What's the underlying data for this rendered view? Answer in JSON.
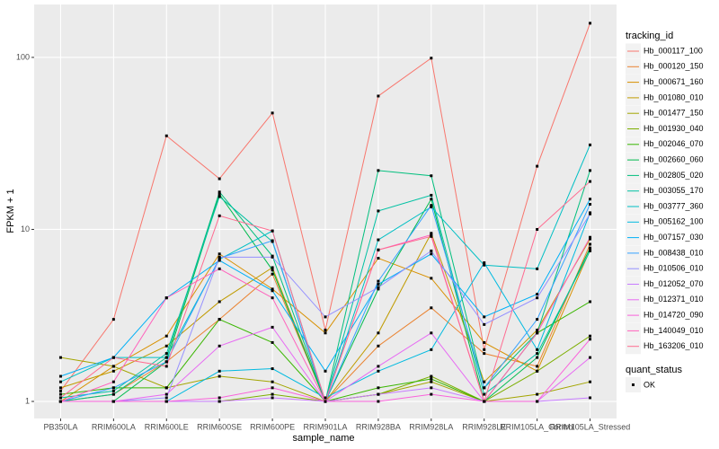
{
  "chart_data": {
    "type": "line",
    "x_label": "sample_name",
    "y_label": "FPKM + 1",
    "log_scale": true,
    "grid": true,
    "categories": [
      "PB350LA",
      "RRIM600LA",
      "RRIM600LE",
      "RRIM600SE",
      "RRIM600PE",
      "RRIM901LA",
      "RRIM928BA",
      "RRIM928LA",
      "RRIM928LE",
      "RRIM105LA_Control",
      "RRIM105LA_Stressed"
    ],
    "ylim": [
      0.796,
      203
    ],
    "yticks": [
      1,
      10,
      100
    ],
    "legend_title": "tracking_id",
    "point_legend_title": "quant_status",
    "point_legend_label": "OK",
    "point_color": "#000000",
    "series": [
      {
        "name": "Hb_000117_100",
        "color": "#F8766D",
        "values": [
          1.15,
          3.0,
          35,
          19.7,
          47.5,
          2.6,
          59.6,
          99,
          2.0,
          23.3,
          158
        ]
      },
      {
        "name": "Hb_000120_150",
        "color": "#EA8331",
        "values": [
          1.0,
          1.1,
          1.7,
          3.0,
          5.5,
          1.0,
          2.1,
          3.5,
          1.9,
          1.6,
          8.2
        ]
      },
      {
        "name": "Hb_000671_160",
        "color": "#D89000",
        "values": [
          1.0,
          1.6,
          2.4,
          7.2,
          4.5,
          2.5,
          6.8,
          5.2,
          2.2,
          1.5,
          7.6
        ]
      },
      {
        "name": "Hb_001080_010",
        "color": "#C09B00",
        "values": [
          1.2,
          1.5,
          2.1,
          3.8,
          6.0,
          1.0,
          2.5,
          9.5,
          1.3,
          2.6,
          8.8
        ]
      },
      {
        "name": "Hb_001477_150",
        "color": "#A3A500",
        "values": [
          1.8,
          1.6,
          1.2,
          1.4,
          1.3,
          1.0,
          1.1,
          1.3,
          1.0,
          1.1,
          1.3
        ]
      },
      {
        "name": "Hb_001930_040",
        "color": "#7CAE00",
        "values": [
          1.0,
          1.0,
          1.0,
          1.0,
          1.1,
          1.0,
          1.1,
          1.4,
          1.0,
          1.5,
          2.4
        ]
      },
      {
        "name": "Hb_002046_070",
        "color": "#39B600",
        "values": [
          1.1,
          1.2,
          1.2,
          3.0,
          2.2,
          1.0,
          1.2,
          1.35,
          1.0,
          2.5,
          3.8
        ]
      },
      {
        "name": "Hb_002660_060",
        "color": "#00BB4E",
        "values": [
          1.0,
          1.0,
          1.7,
          16,
          5.8,
          1.0,
          4.5,
          15,
          1.0,
          1.8,
          7.8
        ]
      },
      {
        "name": "Hb_002805_020",
        "color": "#00BF7D",
        "values": [
          1.0,
          1.1,
          1.8,
          16.5,
          7.0,
          1.0,
          22,
          20.5,
          1.2,
          2.5,
          22
        ]
      },
      {
        "name": "Hb_003055_170",
        "color": "#00C1A3",
        "values": [
          1.05,
          1.15,
          1.9,
          15.5,
          8.5,
          1.0,
          12.8,
          15.8,
          1.1,
          1.9,
          7.5
        ]
      },
      {
        "name": "Hb_003777_360",
        "color": "#00BFC4",
        "values": [
          1.3,
          1.8,
          1.8,
          6.7,
          9.8,
          1.0,
          8.7,
          13.5,
          6.2,
          5.9,
          31
        ]
      },
      {
        "name": "Hb_005162_100",
        "color": "#00BAE0",
        "values": [
          1.0,
          1.0,
          1.0,
          1.5,
          1.55,
          1.05,
          1.5,
          2.0,
          6.4,
          2.0,
          12.5
        ]
      },
      {
        "name": "Hb_007157_030",
        "color": "#00B0F6",
        "values": [
          1.4,
          1.8,
          4.0,
          6.6,
          4.4,
          1.5,
          4.8,
          7.2,
          3.1,
          4.2,
          15
        ]
      },
      {
        "name": "Hb_008438_010",
        "color": "#35A2FF",
        "values": [
          1.0,
          1.2,
          1.7,
          6.8,
          8.6,
          1.0,
          5.0,
          13.8,
          1.2,
          3.0,
          14
        ]
      },
      {
        "name": "Hb_010506_010",
        "color": "#9590FF",
        "values": [
          1.0,
          1.0,
          1.05,
          6.9,
          6.9,
          3.1,
          4.6,
          7.5,
          2.8,
          4.0,
          12.3
        ]
      },
      {
        "name": "Hb_012052_070",
        "color": "#C77CFF",
        "values": [
          1.0,
          1.0,
          1.0,
          1.0,
          1.05,
          1.0,
          1.1,
          1.2,
          1.0,
          1.0,
          1.05
        ]
      },
      {
        "name": "Hb_012371_010",
        "color": "#E76BF3",
        "values": [
          1.0,
          1.0,
          1.1,
          2.1,
          2.7,
          1.0,
          1.6,
          2.5,
          1.0,
          1.0,
          1.8
        ]
      },
      {
        "name": "Hb_014720_090",
        "color": "#FA62DB",
        "values": [
          1.0,
          1.0,
          1.0,
          1.05,
          1.2,
          1.0,
          1.0,
          1.1,
          1.0,
          1.0,
          2.3
        ]
      },
      {
        "name": "Hb_140049_010",
        "color": "#FF62BC",
        "values": [
          1.0,
          1.3,
          4.0,
          5.9,
          4.0,
          1.0,
          7.6,
          9.3,
          1.0,
          2.5,
          9.0
        ]
      },
      {
        "name": "Hb_163206_010",
        "color": "#FF6C91",
        "values": [
          1.05,
          1.8,
          1.6,
          12,
          9.8,
          1.0,
          7.6,
          9.1,
          1.0,
          10,
          19
        ]
      }
    ]
  }
}
